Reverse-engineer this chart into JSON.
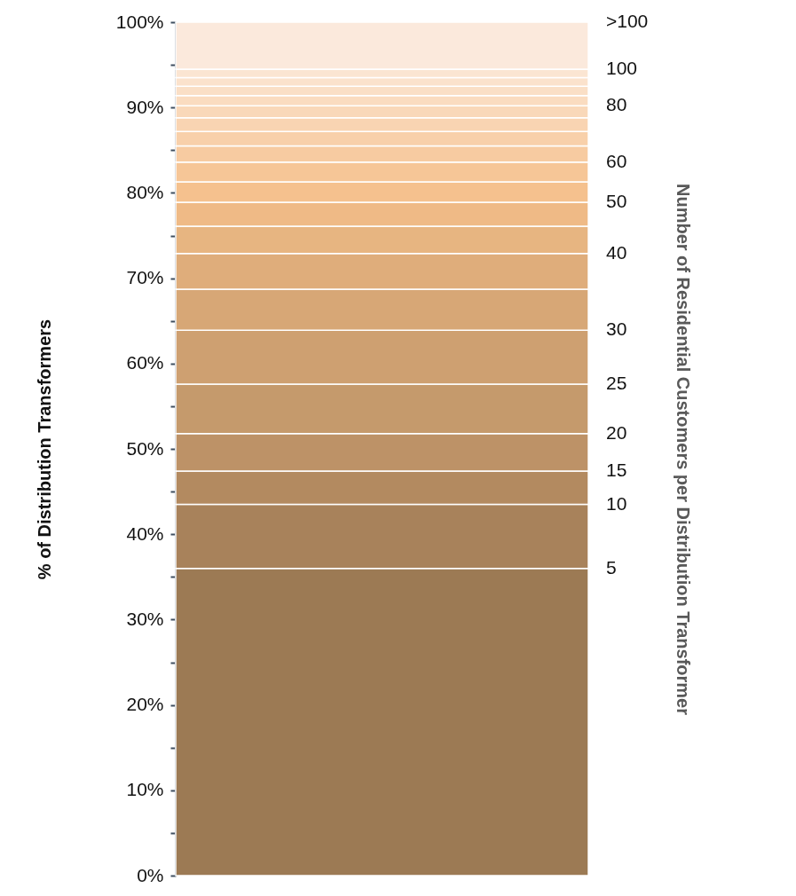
{
  "chart_data": {
    "type": "bar",
    "stacked": true,
    "categories": [
      null
    ],
    "ylabel": "% of Distribution Transformers",
    "y2label": "Number of Residential Customers per Distribution Transformer",
    "ylim": [
      0,
      100
    ],
    "yticks": [
      {
        "value": 0,
        "label": "0%"
      },
      {
        "value": 5,
        "label": null
      },
      {
        "value": 10,
        "label": "10%"
      },
      {
        "value": 15,
        "label": null
      },
      {
        "value": 20,
        "label": "20%"
      },
      {
        "value": 25,
        "label": null
      },
      {
        "value": 30,
        "label": "30%"
      },
      {
        "value": 35,
        "label": null
      },
      {
        "value": 40,
        "label": "40%"
      },
      {
        "value": 45,
        "label": null
      },
      {
        "value": 50,
        "label": "50%"
      },
      {
        "value": 55,
        "label": null
      },
      {
        "value": 60,
        "label": "60%"
      },
      {
        "value": 65,
        "label": null
      },
      {
        "value": 70,
        "label": "70%"
      },
      {
        "value": 75,
        "label": null
      },
      {
        "value": 80,
        "label": "80%"
      },
      {
        "value": 85,
        "label": null
      },
      {
        "value": 90,
        "label": "90%"
      },
      {
        "value": 95,
        "label": null
      },
      {
        "value": 100,
        "label": "100%"
      }
    ],
    "tick_labels": "y",
    "grid": false,
    "legend": false,
    "series": [
      {
        "name": "5",
        "color": "#9c7a54",
        "values": [
          36.0
        ]
      },
      {
        "name": "10",
        "color": "#a8825b",
        "values": [
          7.5
        ]
      },
      {
        "name": "15",
        "color": "#b38a60",
        "values": [
          3.9
        ]
      },
      {
        "name": "20",
        "color": "#bd9267",
        "values": [
          4.4
        ]
      },
      {
        "name": "25",
        "color": "#c59a6c",
        "values": [
          5.8
        ]
      },
      {
        "name": "30",
        "color": "#cea071",
        "values": [
          6.3
        ]
      },
      {
        "color": "#d7a776",
        "values": [
          4.8
        ]
      },
      {
        "name": "40",
        "color": "#dfad7b",
        "values": [
          4.2
        ]
      },
      {
        "color": "#e7b581",
        "values": [
          3.2
        ]
      },
      {
        "name": "50",
        "color": "#efba86",
        "values": [
          2.8
        ]
      },
      {
        "color": "#f5c18e",
        "values": [
          2.4
        ]
      },
      {
        "name": "60",
        "color": "#f6c697",
        "values": [
          2.3
        ]
      },
      {
        "color": "#f7cba1",
        "values": [
          1.9
        ]
      },
      {
        "color": "#f8d0aa",
        "values": [
          1.7
        ]
      },
      {
        "color": "#f9d4b2",
        "values": [
          1.6
        ]
      },
      {
        "name": "80",
        "color": "#f9d8b9",
        "values": [
          1.4
        ]
      },
      {
        "color": "#fadcc0",
        "values": [
          1.2
        ]
      },
      {
        "color": "#fadfc6",
        "values": [
          1.1
        ]
      },
      {
        "color": "#fbe2cc",
        "values": [
          1.0
        ]
      },
      {
        "name": "100",
        "color": "#fbe5d2",
        "values": [
          1.0
        ]
      },
      {
        "name": ">100",
        "color": "#fbe9dc",
        "values": [
          5.5
        ]
      }
    ]
  }
}
